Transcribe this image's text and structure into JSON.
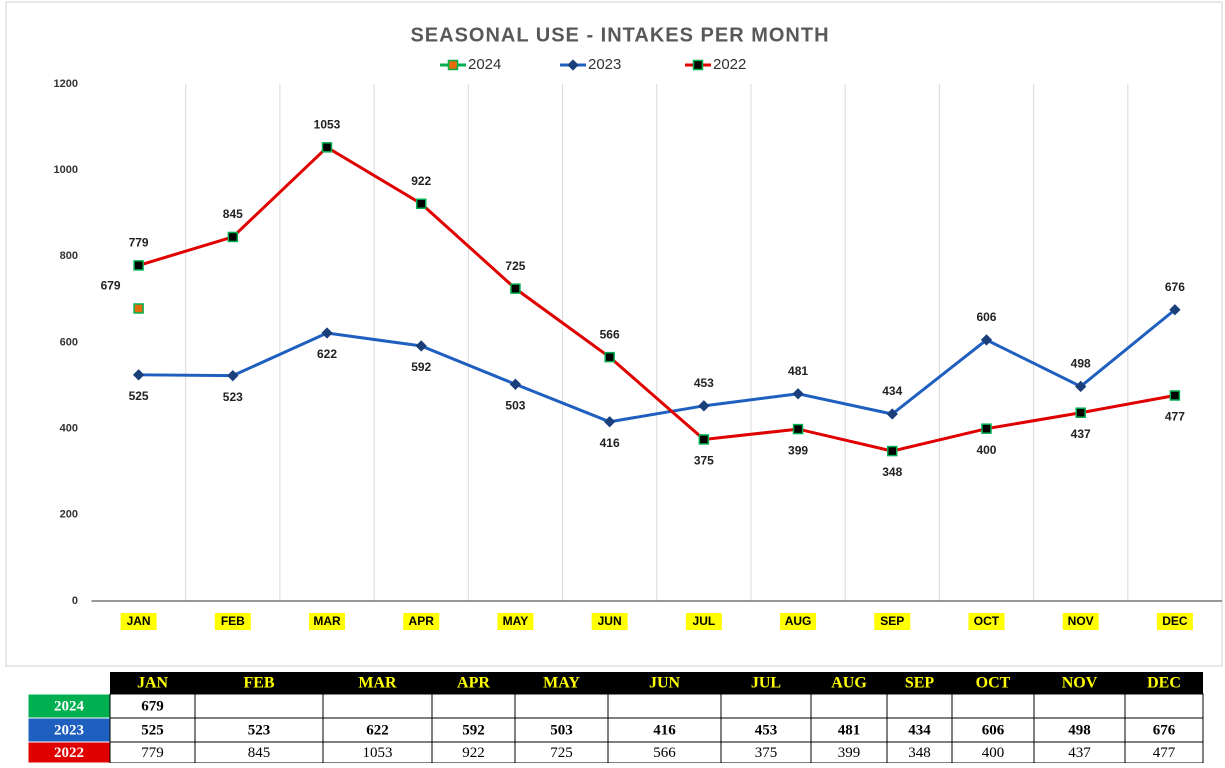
{
  "chart_data": {
    "type": "line",
    "title": "SEASONAL USE - INTAKES PER MONTH",
    "categories": [
      "JAN",
      "FEB",
      "MAR",
      "APR",
      "MAY",
      "JUN",
      "JUL",
      "AUG",
      "SEP",
      "OCT",
      "NOV",
      "DEC"
    ],
    "series": [
      {
        "name": "2024",
        "color": "#00b050",
        "values": [
          679,
          null,
          null,
          null,
          null,
          null,
          null,
          null,
          null,
          null,
          null,
          null
        ]
      },
      {
        "name": "2023",
        "color": "#1f5fbf",
        "values": [
          525,
          523,
          622,
          592,
          503,
          416,
          453,
          481,
          434,
          606,
          498,
          676
        ]
      },
      {
        "name": "2022",
        "color": "#e00000",
        "values": [
          779,
          845,
          1053,
          922,
          725,
          566,
          375,
          399,
          348,
          400,
          437,
          477
        ]
      }
    ],
    "ylim": [
      0,
      1200
    ],
    "yticks": [
      0,
      200,
      400,
      600,
      800,
      1000,
      1200
    ],
    "grid": true,
    "legend": "top"
  }
}
